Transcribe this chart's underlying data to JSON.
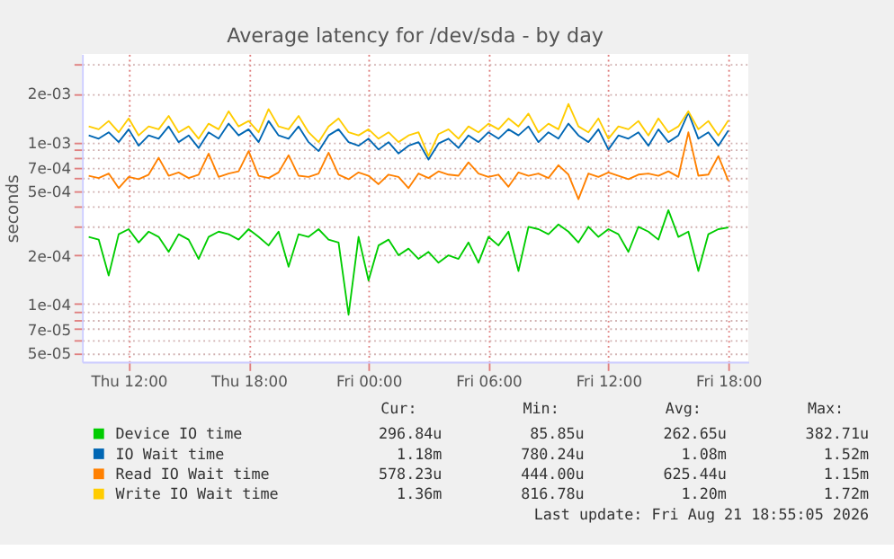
{
  "chart_data": {
    "type": "line",
    "title": "Average latency for /dev/sda - by day",
    "ylabel": "seconds",
    "log": true,
    "grid": true,
    "legend": "bottom",
    "marker": "none",
    "line_style": "solid",
    "xlim": [
      "2026-08-20T09:40",
      "2026-08-21T19:00"
    ],
    "xticks": [
      {
        "value": "2026-08-20T12:00",
        "label": "Thu 12:00"
      },
      {
        "value": "2026-08-20T18:00",
        "label": "Thu 18:00"
      },
      {
        "value": "2026-08-21T00:00",
        "label": "Fri 00:00"
      },
      {
        "value": "2026-08-21T06:00",
        "label": "Fri 06:00"
      },
      {
        "value": "2026-08-21T12:00",
        "label": "Fri 12:00"
      },
      {
        "value": "2026-08-21T18:00",
        "label": "Fri 18:00"
      }
    ],
    "ylim": [
      4.4e-05,
      0.0035
    ],
    "yticks": [
      {
        "value": 5e-05,
        "label": "5e-05"
      },
      {
        "value": 6e-05,
        "label": null
      },
      {
        "value": 7e-05,
        "label": "7e-05"
      },
      {
        "value": 8e-05,
        "label": null
      },
      {
        "value": 9e-05,
        "label": null
      },
      {
        "value": 0.0001,
        "label": "1e-04"
      },
      {
        "value": 0.0002,
        "label": "2e-04"
      },
      {
        "value": 0.0003,
        "label": null
      },
      {
        "value": 0.0004,
        "label": null
      },
      {
        "value": 0.0005,
        "label": "5e-04"
      },
      {
        "value": 0.0006,
        "label": null
      },
      {
        "value": 0.0007,
        "label": "7e-04"
      },
      {
        "value": 0.0008,
        "label": null
      },
      {
        "value": 0.0009,
        "label": null
      },
      {
        "value": 0.001,
        "label": "1e-03"
      },
      {
        "value": 0.002,
        "label": "2e-03"
      },
      {
        "value": 0.003,
        "label": null
      }
    ],
    "x": [
      "2026-08-20T10:00",
      "2026-08-20T10:30",
      "2026-08-20T11:00",
      "2026-08-20T11:30",
      "2026-08-20T12:00",
      "2026-08-20T12:30",
      "2026-08-20T13:00",
      "2026-08-20T13:30",
      "2026-08-20T14:00",
      "2026-08-20T14:30",
      "2026-08-20T15:00",
      "2026-08-20T15:30",
      "2026-08-20T16:00",
      "2026-08-20T16:30",
      "2026-08-20T17:00",
      "2026-08-20T17:30",
      "2026-08-20T18:00",
      "2026-08-20T18:30",
      "2026-08-20T19:00",
      "2026-08-20T19:30",
      "2026-08-20T20:00",
      "2026-08-20T20:30",
      "2026-08-20T21:00",
      "2026-08-20T21:30",
      "2026-08-20T22:00",
      "2026-08-20T22:30",
      "2026-08-20T23:00",
      "2026-08-20T23:30",
      "2026-08-21T00:00",
      "2026-08-21T00:30",
      "2026-08-21T01:00",
      "2026-08-21T01:30",
      "2026-08-21T02:00",
      "2026-08-21T02:30",
      "2026-08-21T03:00",
      "2026-08-21T03:30",
      "2026-08-21T04:00",
      "2026-08-21T04:30",
      "2026-08-21T05:00",
      "2026-08-21T05:30",
      "2026-08-21T06:00",
      "2026-08-21T06:30",
      "2026-08-21T07:00",
      "2026-08-21T07:30",
      "2026-08-21T08:00",
      "2026-08-21T08:30",
      "2026-08-21T09:00",
      "2026-08-21T09:30",
      "2026-08-21T10:00",
      "2026-08-21T10:30",
      "2026-08-21T11:00",
      "2026-08-21T11:30",
      "2026-08-21T12:00",
      "2026-08-21T12:30",
      "2026-08-21T13:00",
      "2026-08-21T13:30",
      "2026-08-21T14:00",
      "2026-08-21T14:30",
      "2026-08-21T15:00",
      "2026-08-21T15:30",
      "2026-08-21T16:00",
      "2026-08-21T16:30",
      "2026-08-21T17:00",
      "2026-08-21T17:30",
      "2026-08-21T18:00"
    ],
    "series": [
      {
        "name": "Device IO time",
        "color": "#00cc00",
        "values": [
          0.00026,
          0.00025,
          0.00015,
          0.00027,
          0.00029,
          0.00024,
          0.00028,
          0.00026,
          0.00021,
          0.00027,
          0.00025,
          0.00019,
          0.00026,
          0.00028,
          0.00027,
          0.00025,
          0.00029,
          0.00026,
          0.00023,
          0.00028,
          0.00017,
          0.00027,
          0.00026,
          0.00029,
          0.00025,
          0.00024,
          8.59e-05,
          0.00026,
          0.00014,
          0.00023,
          0.00025,
          0.0002,
          0.00022,
          0.00019,
          0.00021,
          0.00018,
          0.0002,
          0.00019,
          0.00024,
          0.00018,
          0.00026,
          0.00023,
          0.00028,
          0.00016,
          0.0003,
          0.00029,
          0.00027,
          0.00031,
          0.00028,
          0.00024,
          0.0003,
          0.00026,
          0.00029,
          0.00027,
          0.00021,
          0.0003,
          0.00028,
          0.00025,
          0.00038,
          0.00026,
          0.00028,
          0.00016,
          0.00027,
          0.00029,
          0.000297
        ]
      },
      {
        "name": "IO Wait time",
        "color": "#0066b3",
        "values": [
          0.0011,
          0.00105,
          0.00115,
          0.001,
          0.0012,
          0.00095,
          0.0011,
          0.00105,
          0.00125,
          0.001,
          0.0011,
          0.00092,
          0.00115,
          0.00105,
          0.0013,
          0.0011,
          0.0012,
          0.001,
          0.00135,
          0.0011,
          0.00105,
          0.00125,
          0.001,
          0.00088,
          0.0011,
          0.0012,
          0.001,
          0.00095,
          0.00105,
          0.0009,
          0.001,
          0.00085,
          0.00095,
          0.001,
          0.00078,
          0.00098,
          0.00105,
          0.00092,
          0.0011,
          0.001,
          0.00115,
          0.00105,
          0.0012,
          0.0011,
          0.00125,
          0.001,
          0.00115,
          0.00105,
          0.0013,
          0.0011,
          0.001,
          0.0012,
          0.0009,
          0.0011,
          0.00105,
          0.00115,
          0.00095,
          0.0012,
          0.001,
          0.0011,
          0.00152,
          0.00105,
          0.00115,
          0.00095,
          0.00118
        ]
      },
      {
        "name": "Read IO Wait time",
        "color": "#ff8000",
        "values": [
          0.00062,
          0.0006,
          0.00064,
          0.00052,
          0.00061,
          0.00059,
          0.00063,
          0.0008,
          0.00062,
          0.00065,
          0.0006,
          0.00063,
          0.00085,
          0.00061,
          0.00064,
          0.00066,
          0.00088,
          0.00062,
          0.0006,
          0.00065,
          0.00083,
          0.00062,
          0.00061,
          0.00064,
          0.00086,
          0.00063,
          0.00059,
          0.00065,
          0.00062,
          0.00055,
          0.00063,
          0.00061,
          0.00052,
          0.00064,
          0.0006,
          0.00066,
          0.00063,
          0.00062,
          0.00075,
          0.00064,
          0.00061,
          0.00063,
          0.00053,
          0.00065,
          0.00062,
          0.00064,
          0.0006,
          0.00072,
          0.00063,
          0.000444,
          0.00064,
          0.00061,
          0.00065,
          0.00062,
          0.00059,
          0.00063,
          0.00064,
          0.00062,
          0.00066,
          0.00061,
          0.00115,
          0.00062,
          0.00063,
          0.00082,
          0.000578
        ]
      },
      {
        "name": "Write IO Wait time",
        "color": "#ffcc00",
        "values": [
          0.00125,
          0.0012,
          0.00135,
          0.00115,
          0.0014,
          0.0011,
          0.00125,
          0.0012,
          0.00145,
          0.00115,
          0.00125,
          0.00105,
          0.0013,
          0.0012,
          0.00155,
          0.00125,
          0.00135,
          0.00115,
          0.0016,
          0.00125,
          0.0012,
          0.00145,
          0.00115,
          0.001,
          0.00125,
          0.0014,
          0.00115,
          0.0011,
          0.0012,
          0.00105,
          0.00115,
          0.001,
          0.0011,
          0.00115,
          0.00082,
          0.00112,
          0.0012,
          0.00105,
          0.00125,
          0.00115,
          0.0013,
          0.0012,
          0.0014,
          0.00125,
          0.0015,
          0.00115,
          0.0013,
          0.0012,
          0.00172,
          0.00125,
          0.00115,
          0.0014,
          0.00105,
          0.00125,
          0.0012,
          0.00135,
          0.0011,
          0.0014,
          0.00115,
          0.00125,
          0.00155,
          0.0012,
          0.00135,
          0.0011,
          0.00136
        ]
      }
    ],
    "annotations": [
      "Cur:",
      "Min:",
      "Avg:",
      "Max:",
      "296.84u",
      "85.85u",
      "262.65u",
      "382.71u",
      "1.18m",
      "780.24u",
      "1.08m",
      "1.52m",
      "578.23u",
      "444.00u",
      "625.44u",
      "1.15m",
      "1.36m",
      "816.78u",
      "1.20m",
      "1.72m",
      "Last update: Fri Aug 21 18:55:05 2026"
    ]
  }
}
